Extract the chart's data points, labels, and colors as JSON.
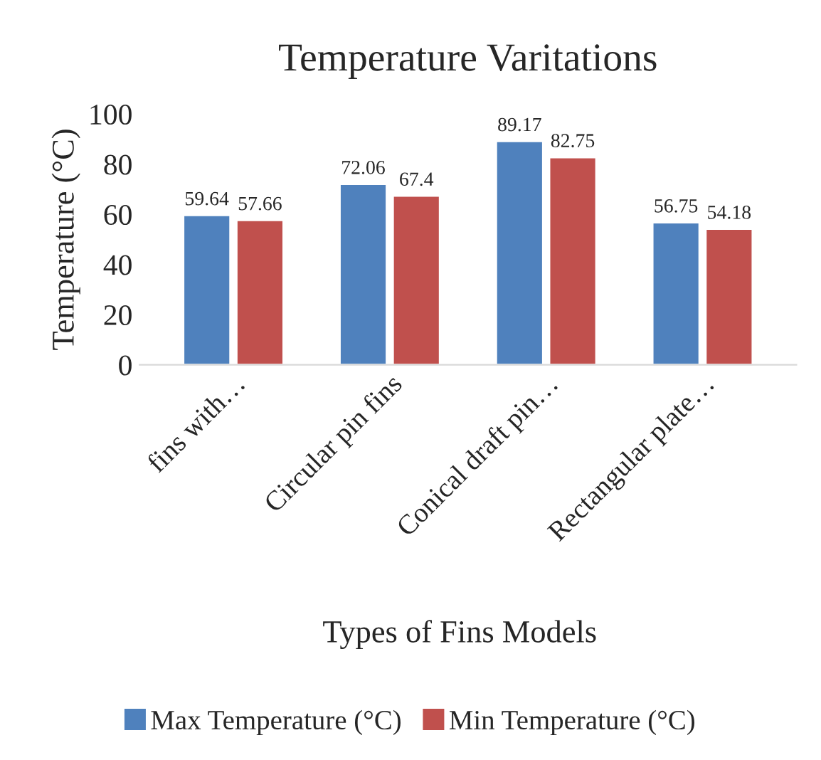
{
  "chart_data": {
    "type": "bar",
    "title": "Temperature Varitations",
    "xlabel": "Types of Fins Models",
    "ylabel": "Temperature (°C)",
    "categories": [
      "fins with…",
      "Circular pin fins",
      "Conical draft pin…",
      "Rectangular plate…"
    ],
    "series": [
      {
        "name": "Max Temperature (°C)",
        "color": "#4f81bd",
        "values": [
          59.64,
          72.06,
          89.17,
          56.75
        ]
      },
      {
        "name": "Min Temperature (°C)",
        "color": "#c0504d",
        "values": [
          57.66,
          67.4,
          82.75,
          54.18
        ]
      }
    ],
    "ylim": [
      0,
      100
    ],
    "yticks": [
      0,
      20,
      40,
      60,
      80,
      100
    ],
    "grid": false,
    "legend": "bottom",
    "data_labels": true
  }
}
